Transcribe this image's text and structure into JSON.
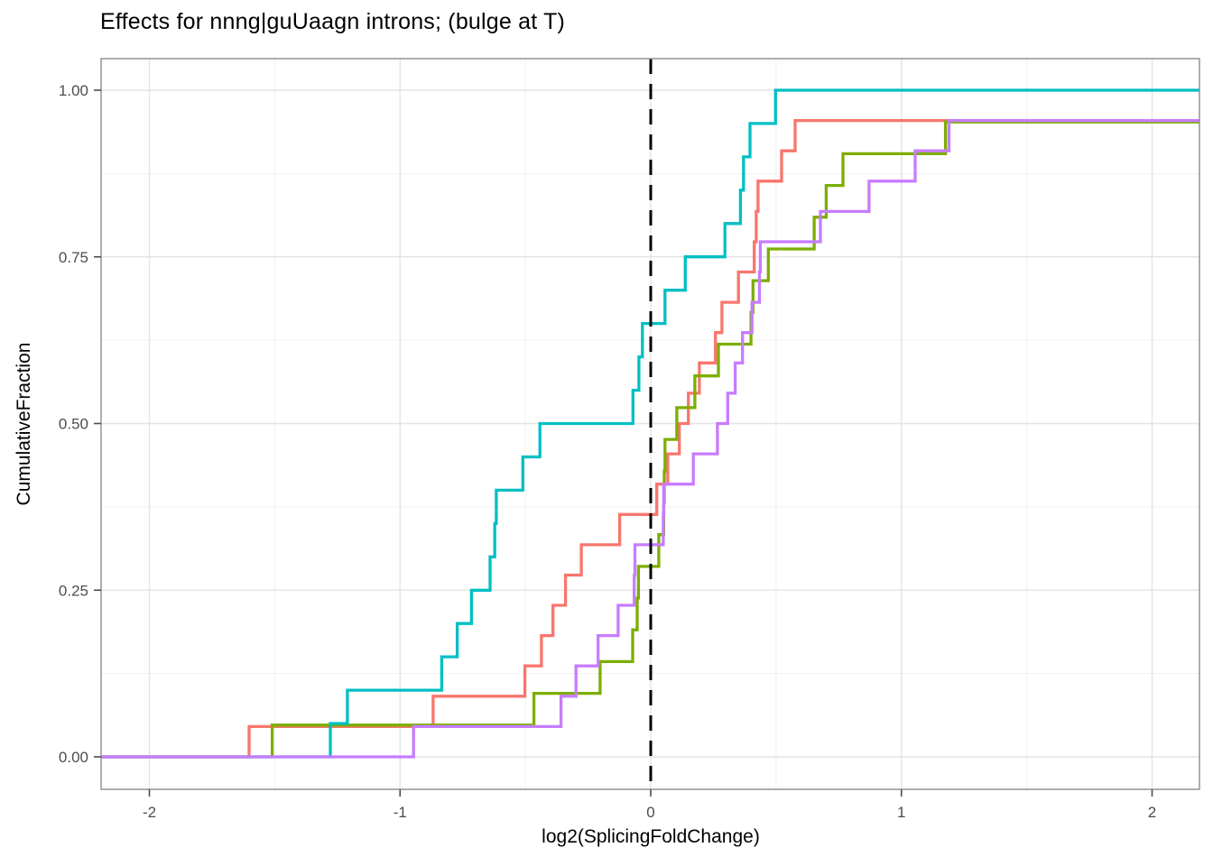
{
  "title": "Effects for nnng|guUaagn introns; (bulge at T)",
  "x_axis": {
    "label": "log2(SplicingFoldChange)",
    "tick_values": [
      -2,
      -1,
      0,
      1,
      2
    ],
    "tick_labels": [
      "-2",
      "-1",
      "0",
      "1",
      "2"
    ],
    "minor_ticks": [
      -1.5,
      -0.5,
      0.5,
      1.5
    ],
    "range": [
      -2.193,
      2.193
    ]
  },
  "y_axis": {
    "label": "CumulativeFraction",
    "tick_values": [
      0,
      0.25,
      0.5,
      0.75,
      1.0
    ],
    "tick_labels": [
      "0.00",
      "0.25",
      "0.50",
      "0.75",
      "1.00"
    ],
    "minor_ticks": [
      0.125,
      0.375,
      0.625,
      0.875
    ],
    "range": [
      -0.05,
      1.047
    ]
  },
  "style": {
    "grid_major_color": "#E4E4E4",
    "grid_minor_color": "#F1F1F1",
    "panel_border_color": "#8C8C8C",
    "tick_mark_color": "#4D4D4D",
    "tick_label_color": "#4D4D4D",
    "title_color": "#000000",
    "vline_color": "#000000"
  },
  "chart_data": {
    "type": "step_ecdf",
    "title": "Effects for nnng|guUaagn introns; (bulge at T)",
    "xlabel": "log2(SplicingFoldChange)",
    "ylabel": "CumulativeFraction",
    "xlim": [
      -2.193,
      2.193
    ],
    "ylim": [
      -0.05,
      1.047
    ],
    "grid": "on",
    "legend": "none",
    "vline": {
      "x": 0,
      "linestyle": "dashed",
      "color": "#000000"
    },
    "note": "Each series is an empirical CDF; jump_x are the x-positions where the curve steps up by 1/n_points. Curves with plateau below 1.0 have remaining points beyond the right edge of the panel.",
    "series": [
      {
        "name": "salmon",
        "color": "#F8766D",
        "n_points": 22,
        "plateau": 0.9545,
        "jump_x": [
          -1.602,
          -0.868,
          -0.502,
          -0.436,
          -0.39,
          -0.34,
          -0.277,
          -0.124,
          0.024,
          0.068,
          0.114,
          0.15,
          0.194,
          0.258,
          0.284,
          0.35,
          0.413,
          0.421,
          0.428,
          0.522,
          0.576
        ]
      },
      {
        "name": "olive-green",
        "color": "#7CAE00",
        "n_points": 21,
        "plateau": 0.9524,
        "jump_x": [
          -1.51,
          -0.466,
          -0.202,
          -0.072,
          -0.054,
          -0.049,
          0.032,
          0.052,
          0.054,
          0.057,
          0.104,
          0.176,
          0.27,
          0.4,
          0.408,
          0.469,
          0.652,
          0.7,
          0.767,
          1.176
        ]
      },
      {
        "name": "teal",
        "color": "#00BFC4",
        "n_points": 20,
        "plateau": 1.0,
        "jump_x": [
          -1.278,
          -1.21,
          -0.834,
          -0.772,
          -0.715,
          -0.641,
          -0.622,
          -0.616,
          -0.51,
          -0.442,
          -0.071,
          -0.047,
          -0.033,
          0.057,
          0.138,
          0.296,
          0.358,
          0.37,
          0.396,
          0.498
        ]
      },
      {
        "name": "purple",
        "color": "#C77CFF",
        "n_points": 22,
        "plateau": 0.9545,
        "jump_x": [
          -0.946,
          -0.358,
          -0.298,
          -0.21,
          -0.13,
          -0.066,
          -0.063,
          0.05,
          0.052,
          0.17,
          0.266,
          0.307,
          0.337,
          0.366,
          0.404,
          0.434,
          0.437,
          0.677,
          0.871,
          1.055,
          1.19
        ]
      }
    ]
  }
}
